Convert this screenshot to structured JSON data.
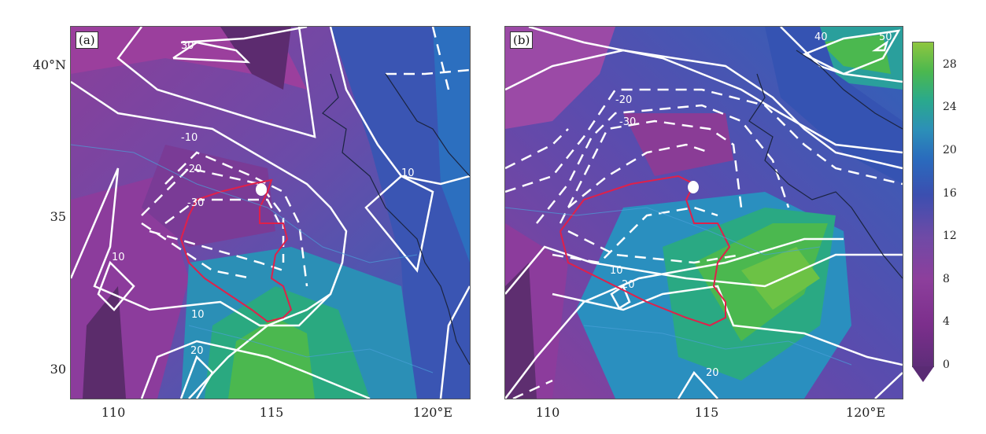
{
  "panels": [
    {
      "label": "(a)"
    },
    {
      "label": "(b)"
    }
  ],
  "axes": {
    "x_ticks": [
      "110",
      "115",
      "120°E"
    ],
    "y_ticks": [
      "40°N",
      "35",
      "30"
    ]
  },
  "colorbar": {
    "ticks": [
      "0",
      "4",
      "8",
      "12",
      "16",
      "20",
      "24",
      "28"
    ],
    "colors": [
      "#5e2d79",
      "#7c2f8c",
      "#8d3f9c",
      "#6f4aa6",
      "#3b4fb0",
      "#2a6bbd",
      "#2c8fb8",
      "#2aa98d",
      "#4bb84f",
      "#8ec63f"
    ]
  },
  "contour_labels": {
    "a": [
      "30",
      "-10",
      "-20",
      "-30",
      "10",
      "10",
      "10",
      "20"
    ],
    "b": [
      "40",
      "50",
      "-20",
      "-30",
      "10",
      "20",
      "20"
    ]
  },
  "contour_color": "#ffffff",
  "boundary_color": "#e0204a",
  "marker_color": "#ffffff"
}
